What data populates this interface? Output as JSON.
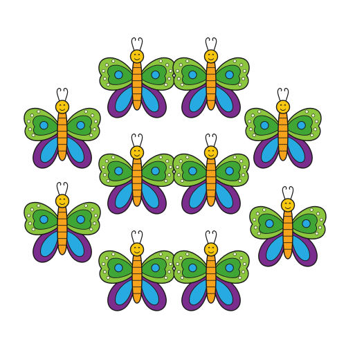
{
  "scene": {
    "subject": "butterfly",
    "count": 10,
    "palette": {
      "background": "#ffffff",
      "outline": "#1a1a1a",
      "upper_wing": "#8cc63f",
      "upper_wing_inner": "#3fa535",
      "lower_wing": "#7b2d8e",
      "lower_wing_inner": "#27a9e1",
      "body": "#f7a21b",
      "head": "#f9c80e",
      "dots": "#e8f5c8"
    }
  }
}
